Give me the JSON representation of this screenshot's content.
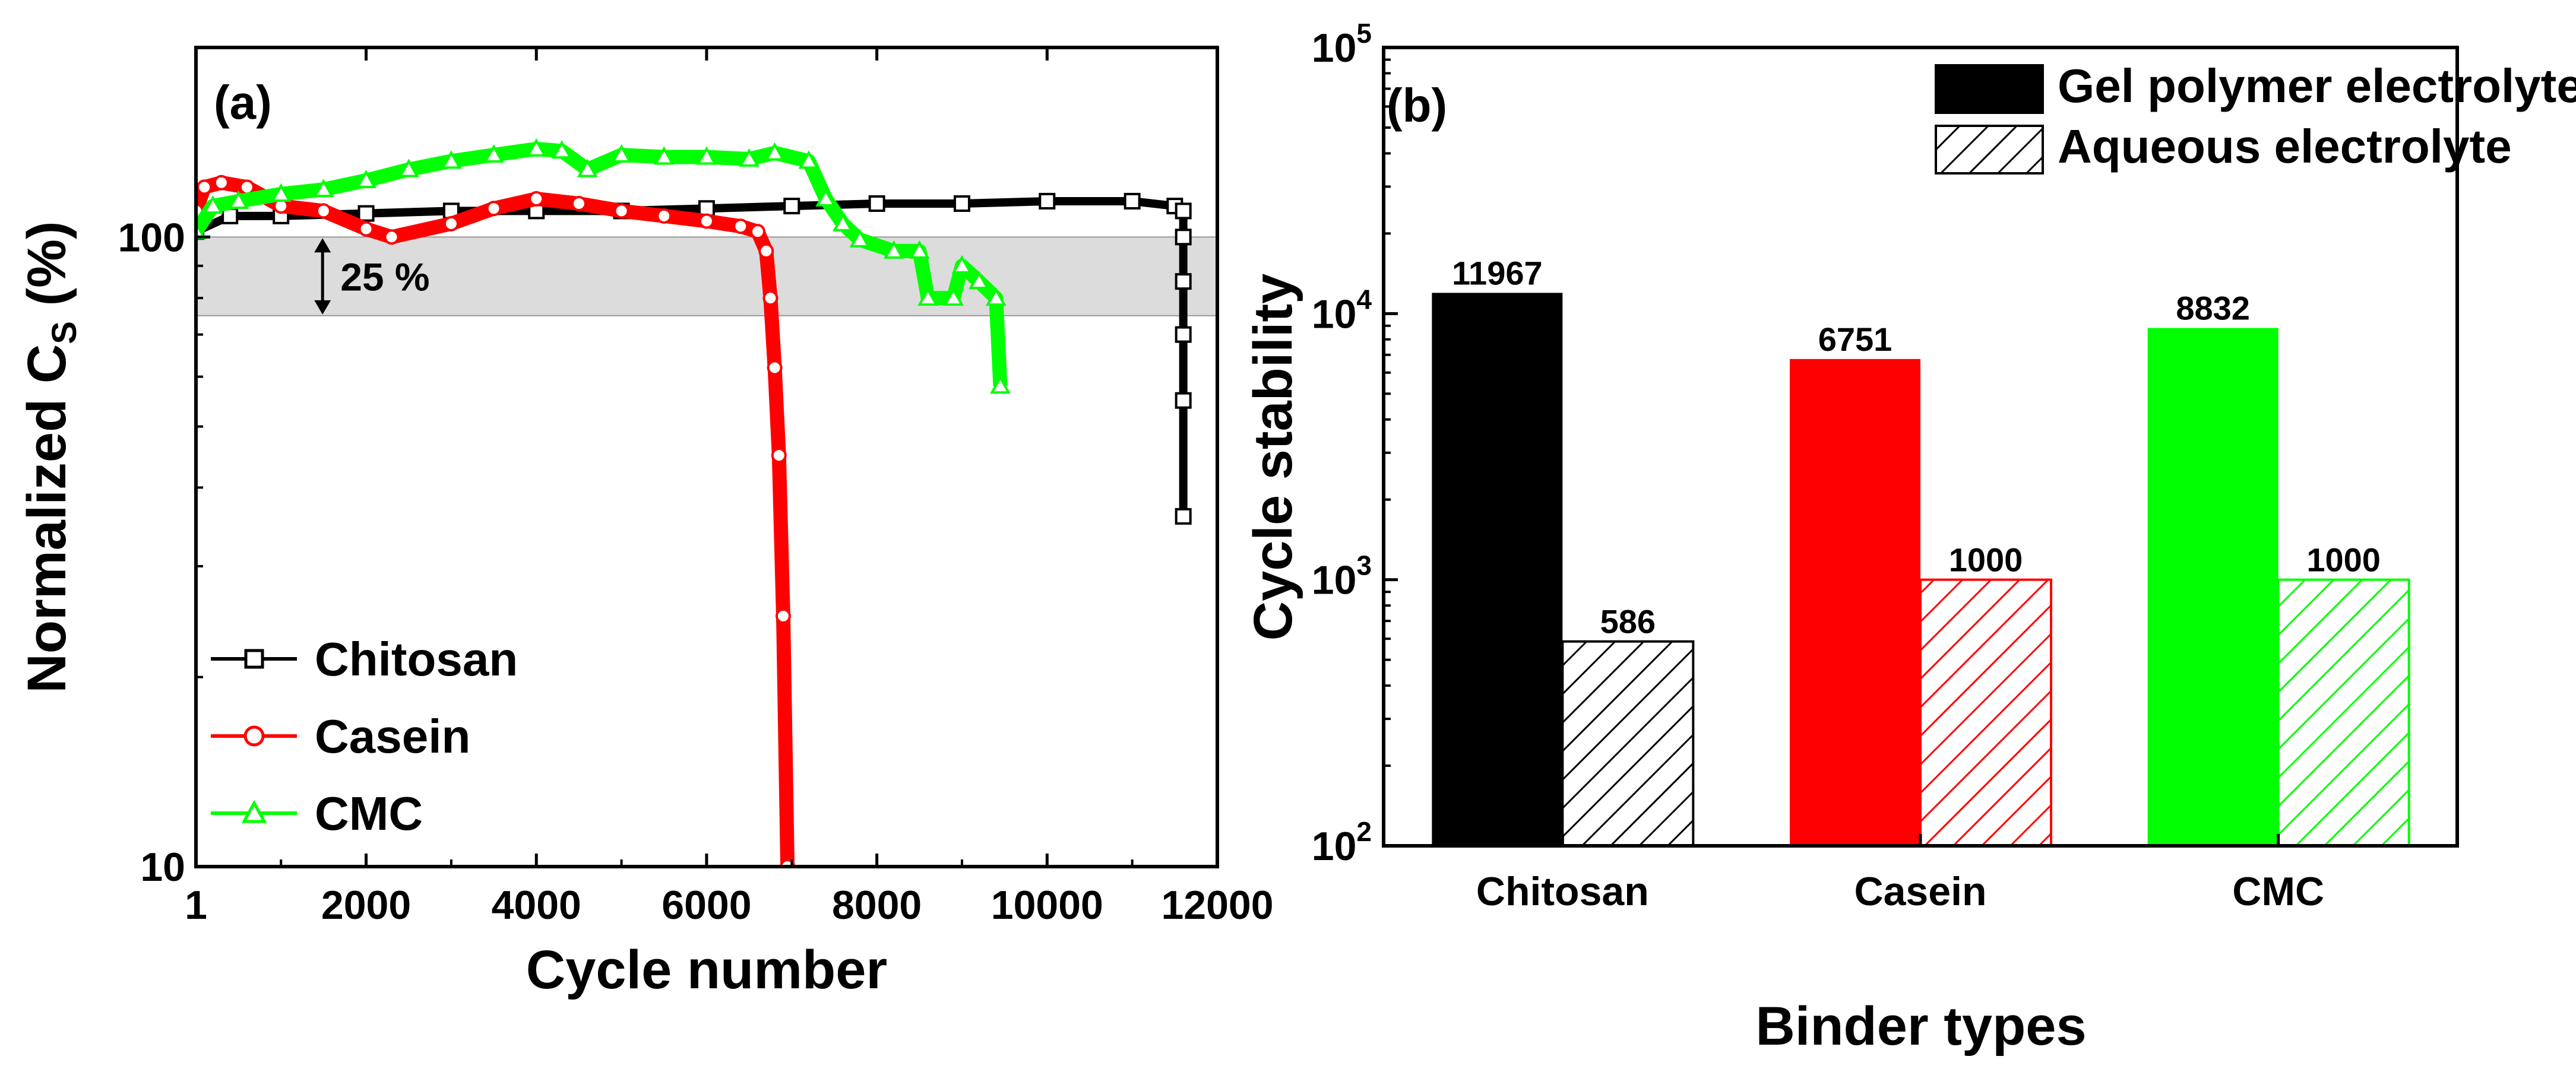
{
  "chart_data": [
    {
      "type": "line",
      "panel": "(a)",
      "xlabel": "Cycle number",
      "ylabel_main": "Normalized C",
      "ylabel_sub": "S",
      "ylabel_unit": " (%)",
      "yscale": "log",
      "xlim": [
        1,
        12000
      ],
      "ylim": [
        10,
        200
      ],
      "xticks": [
        1,
        2000,
        4000,
        6000,
        8000,
        10000,
        12000
      ],
      "xtick_labels": [
        "1",
        "2000",
        "4000",
        "6000",
        "8000",
        "10000",
        "12000"
      ],
      "yticks": [
        10,
        100
      ],
      "ytick_labels": [
        "10",
        "100"
      ],
      "band": {
        "from": 75,
        "to": 100,
        "label": "25 %",
        "color": "#dcdcdc"
      },
      "legend_position": "bottom-left",
      "series": [
        {
          "name": "Chitosan",
          "color": "#000000",
          "marker": "square",
          "x": [
            1,
            400,
            1000,
            2000,
            3000,
            4000,
            5000,
            6000,
            7000,
            8000,
            9000,
            10000,
            11000,
            11500,
            11600,
            11600,
            11600,
            11600,
            11600,
            11600
          ],
          "y": [
            102,
            108,
            108,
            109,
            110,
            110,
            110,
            111,
            112,
            113,
            113,
            114,
            114,
            112,
            110,
            100,
            85,
            70,
            55,
            36
          ]
        },
        {
          "name": "Casein",
          "color": "#ff0000",
          "marker": "circle",
          "x": [
            1,
            100,
            300,
            600,
            1000,
            1500,
            2000,
            2300,
            3000,
            3500,
            4000,
            4500,
            5000,
            5500,
            6000,
            6400,
            6600,
            6700,
            6750,
            6800,
            6850,
            6900,
            6950
          ],
          "y": [
            110,
            120,
            122,
            120,
            112,
            110,
            103,
            100,
            105,
            111,
            115,
            113,
            110,
            108,
            106,
            104,
            102,
            95,
            80,
            62,
            45,
            25,
            10
          ]
        },
        {
          "name": "CMC",
          "color": "#00ff00",
          "marker": "triangle",
          "x": [
            1,
            200,
            500,
            1000,
            1500,
            2000,
            2500,
            3000,
            3500,
            4000,
            4300,
            4600,
            5000,
            5500,
            6000,
            6500,
            6800,
            7200,
            7400,
            7600,
            7800,
            8200,
            8500,
            8600,
            8900,
            9000,
            9200,
            9400,
            9450
          ],
          "y": [
            102,
            112,
            114,
            117,
            119,
            123,
            128,
            132,
            135,
            138,
            137,
            128,
            135,
            134,
            134,
            133,
            136,
            132,
            115,
            105,
            99,
            95,
            95,
            80,
            80,
            90,
            85,
            80,
            58
          ]
        }
      ]
    },
    {
      "type": "bar",
      "panel": "(b)",
      "xlabel": "Binder types",
      "ylabel": "Cycle stability",
      "yscale": "log",
      "ylim": [
        100,
        100000
      ],
      "ytick_bases": [
        "10",
        "10",
        "10",
        "10"
      ],
      "ytick_exps": [
        "2",
        "3",
        "4",
        "5"
      ],
      "categories": [
        "Chitosan",
        "Casein",
        "CMC"
      ],
      "legend_position": "top-right",
      "series": [
        {
          "name": "Gel polymer electrolyte",
          "values": [
            11967,
            6751,
            8832
          ],
          "labels": [
            "11967",
            "6751",
            "8832"
          ],
          "fill": "solid"
        },
        {
          "name": "Aqueous electrolyte",
          "values": [
            586,
            1000,
            1000
          ],
          "labels": [
            "586",
            "1000",
            "1000"
          ],
          "fill": "hatched"
        }
      ],
      "bar_colors": [
        "#000000",
        "#ff0000",
        "#00ff00"
      ]
    }
  ]
}
